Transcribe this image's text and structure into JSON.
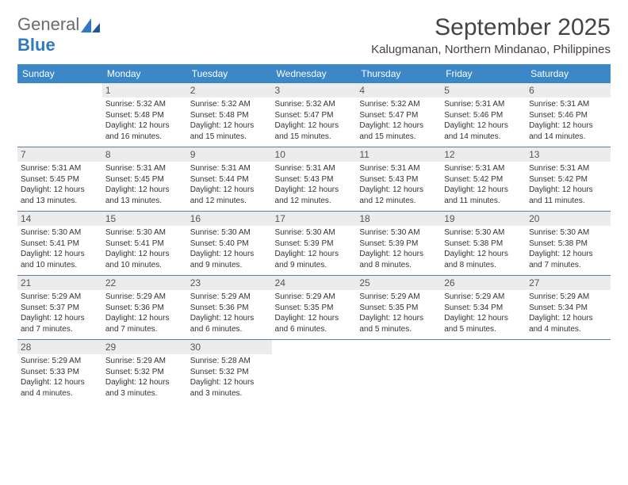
{
  "logo": {
    "general": "General",
    "blue": "Blue"
  },
  "header": {
    "month_title": "September 2025",
    "location": "Kalugmanan, Northern Mindanao, Philippines"
  },
  "colors": {
    "header_bg": "#3b87c8",
    "header_text": "#ffffff",
    "daynum_bg": "#ececec",
    "row_divider": "#5a7fa0",
    "body_text": "#333333"
  },
  "day_headers": [
    "Sunday",
    "Monday",
    "Tuesday",
    "Wednesday",
    "Thursday",
    "Friday",
    "Saturday"
  ],
  "weeks": [
    [
      {
        "n": "",
        "sr": "",
        "ss": "",
        "dl": ""
      },
      {
        "n": "1",
        "sr": "Sunrise: 5:32 AM",
        "ss": "Sunset: 5:48 PM",
        "dl": "Daylight: 12 hours and 16 minutes."
      },
      {
        "n": "2",
        "sr": "Sunrise: 5:32 AM",
        "ss": "Sunset: 5:48 PM",
        "dl": "Daylight: 12 hours and 15 minutes."
      },
      {
        "n": "3",
        "sr": "Sunrise: 5:32 AM",
        "ss": "Sunset: 5:47 PM",
        "dl": "Daylight: 12 hours and 15 minutes."
      },
      {
        "n": "4",
        "sr": "Sunrise: 5:32 AM",
        "ss": "Sunset: 5:47 PM",
        "dl": "Daylight: 12 hours and 15 minutes."
      },
      {
        "n": "5",
        "sr": "Sunrise: 5:31 AM",
        "ss": "Sunset: 5:46 PM",
        "dl": "Daylight: 12 hours and 14 minutes."
      },
      {
        "n": "6",
        "sr": "Sunrise: 5:31 AM",
        "ss": "Sunset: 5:46 PM",
        "dl": "Daylight: 12 hours and 14 minutes."
      }
    ],
    [
      {
        "n": "7",
        "sr": "Sunrise: 5:31 AM",
        "ss": "Sunset: 5:45 PM",
        "dl": "Daylight: 12 hours and 13 minutes."
      },
      {
        "n": "8",
        "sr": "Sunrise: 5:31 AM",
        "ss": "Sunset: 5:45 PM",
        "dl": "Daylight: 12 hours and 13 minutes."
      },
      {
        "n": "9",
        "sr": "Sunrise: 5:31 AM",
        "ss": "Sunset: 5:44 PM",
        "dl": "Daylight: 12 hours and 12 minutes."
      },
      {
        "n": "10",
        "sr": "Sunrise: 5:31 AM",
        "ss": "Sunset: 5:43 PM",
        "dl": "Daylight: 12 hours and 12 minutes."
      },
      {
        "n": "11",
        "sr": "Sunrise: 5:31 AM",
        "ss": "Sunset: 5:43 PM",
        "dl": "Daylight: 12 hours and 12 minutes."
      },
      {
        "n": "12",
        "sr": "Sunrise: 5:31 AM",
        "ss": "Sunset: 5:42 PM",
        "dl": "Daylight: 12 hours and 11 minutes."
      },
      {
        "n": "13",
        "sr": "Sunrise: 5:31 AM",
        "ss": "Sunset: 5:42 PM",
        "dl": "Daylight: 12 hours and 11 minutes."
      }
    ],
    [
      {
        "n": "14",
        "sr": "Sunrise: 5:30 AM",
        "ss": "Sunset: 5:41 PM",
        "dl": "Daylight: 12 hours and 10 minutes."
      },
      {
        "n": "15",
        "sr": "Sunrise: 5:30 AM",
        "ss": "Sunset: 5:41 PM",
        "dl": "Daylight: 12 hours and 10 minutes."
      },
      {
        "n": "16",
        "sr": "Sunrise: 5:30 AM",
        "ss": "Sunset: 5:40 PM",
        "dl": "Daylight: 12 hours and 9 minutes."
      },
      {
        "n": "17",
        "sr": "Sunrise: 5:30 AM",
        "ss": "Sunset: 5:39 PM",
        "dl": "Daylight: 12 hours and 9 minutes."
      },
      {
        "n": "18",
        "sr": "Sunrise: 5:30 AM",
        "ss": "Sunset: 5:39 PM",
        "dl": "Daylight: 12 hours and 8 minutes."
      },
      {
        "n": "19",
        "sr": "Sunrise: 5:30 AM",
        "ss": "Sunset: 5:38 PM",
        "dl": "Daylight: 12 hours and 8 minutes."
      },
      {
        "n": "20",
        "sr": "Sunrise: 5:30 AM",
        "ss": "Sunset: 5:38 PM",
        "dl": "Daylight: 12 hours and 7 minutes."
      }
    ],
    [
      {
        "n": "21",
        "sr": "Sunrise: 5:29 AM",
        "ss": "Sunset: 5:37 PM",
        "dl": "Daylight: 12 hours and 7 minutes."
      },
      {
        "n": "22",
        "sr": "Sunrise: 5:29 AM",
        "ss": "Sunset: 5:36 PM",
        "dl": "Daylight: 12 hours and 7 minutes."
      },
      {
        "n": "23",
        "sr": "Sunrise: 5:29 AM",
        "ss": "Sunset: 5:36 PM",
        "dl": "Daylight: 12 hours and 6 minutes."
      },
      {
        "n": "24",
        "sr": "Sunrise: 5:29 AM",
        "ss": "Sunset: 5:35 PM",
        "dl": "Daylight: 12 hours and 6 minutes."
      },
      {
        "n": "25",
        "sr": "Sunrise: 5:29 AM",
        "ss": "Sunset: 5:35 PM",
        "dl": "Daylight: 12 hours and 5 minutes."
      },
      {
        "n": "26",
        "sr": "Sunrise: 5:29 AM",
        "ss": "Sunset: 5:34 PM",
        "dl": "Daylight: 12 hours and 5 minutes."
      },
      {
        "n": "27",
        "sr": "Sunrise: 5:29 AM",
        "ss": "Sunset: 5:34 PM",
        "dl": "Daylight: 12 hours and 4 minutes."
      }
    ],
    [
      {
        "n": "28",
        "sr": "Sunrise: 5:29 AM",
        "ss": "Sunset: 5:33 PM",
        "dl": "Daylight: 12 hours and 4 minutes."
      },
      {
        "n": "29",
        "sr": "Sunrise: 5:29 AM",
        "ss": "Sunset: 5:32 PM",
        "dl": "Daylight: 12 hours and 3 minutes."
      },
      {
        "n": "30",
        "sr": "Sunrise: 5:28 AM",
        "ss": "Sunset: 5:32 PM",
        "dl": "Daylight: 12 hours and 3 minutes."
      },
      {
        "n": "",
        "sr": "",
        "ss": "",
        "dl": ""
      },
      {
        "n": "",
        "sr": "",
        "ss": "",
        "dl": ""
      },
      {
        "n": "",
        "sr": "",
        "ss": "",
        "dl": ""
      },
      {
        "n": "",
        "sr": "",
        "ss": "",
        "dl": ""
      }
    ]
  ]
}
